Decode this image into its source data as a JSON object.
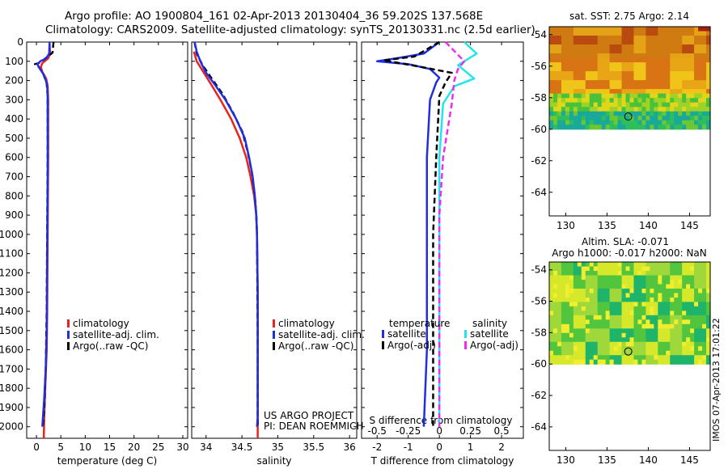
{
  "header": {
    "title_line1": "Argo profile: AO 1900804_161 02-Apr-2013 20130404_36 59.202S 137.568E",
    "title_line2": "Climatology: CARS2009. Satellite-adjusted climatology: synTS_20130331.nc (2.5d earlier)"
  },
  "side_stamp": "IMOS 07-Apr-2013 17:01:22",
  "colors": {
    "red": "#e8231d",
    "blue": "#1f2fe0",
    "black": "#000000",
    "cyan": "#22e5ea",
    "magenta": "#f02cf2"
  },
  "chart_data": [
    {
      "id": "temperature",
      "type": "line",
      "xlabel": "temperature (deg C)",
      "ylabel": "",
      "xlim": [
        -2,
        31
      ],
      "ylim": [
        2060,
        0
      ],
      "xticks": [
        0,
        5,
        10,
        15,
        20,
        25,
        30
      ],
      "yticks": [
        0,
        100,
        200,
        300,
        400,
        500,
        600,
        700,
        800,
        900,
        1000,
        1100,
        1200,
        1300,
        1400,
        1500,
        1600,
        1700,
        1800,
        1900,
        2000
      ],
      "legend": [
        "climatology",
        "satellite-adj. clim.",
        "Argo(..raw -QC)"
      ],
      "series": [
        {
          "name": "climatology",
          "color": "red",
          "points": [
            [
              2.7,
              10
            ],
            [
              2.8,
              60
            ],
            [
              2.4,
              85
            ],
            [
              1.2,
              110
            ],
            [
              0.9,
              130
            ],
            [
              1.2,
              155
            ],
            [
              2.0,
              190
            ],
            [
              2.3,
              230
            ],
            [
              2.4,
              300
            ],
            [
              2.4,
              600
            ],
            [
              2.3,
              1000
            ],
            [
              2.2,
              1400
            ],
            [
              2.1,
              1600
            ],
            [
              1.8,
              1800
            ],
            [
              1.6,
              1950
            ],
            [
              1.5,
              2060
            ]
          ]
        },
        {
          "name": "satellite-adj. clim.",
          "color": "blue",
          "points": [
            [
              2.7,
              0
            ],
            [
              2.6,
              60
            ],
            [
              2.0,
              85
            ],
            [
              0.8,
              100
            ],
            [
              0.2,
              115
            ],
            [
              0.6,
              135
            ],
            [
              1.5,
              170
            ],
            [
              2.2,
              220
            ],
            [
              2.3,
              300
            ],
            [
              2.3,
              700
            ],
            [
              2.2,
              1100
            ],
            [
              2.1,
              1500
            ],
            [
              1.9,
              1700
            ],
            [
              1.6,
              1850
            ],
            [
              1.2,
              2000
            ]
          ]
        },
        {
          "name": "Argo(..raw -QC)",
          "color": "black",
          "points": [
            [
              3.5,
              0
            ],
            [
              3.3,
              55
            ],
            [
              1.6,
              90
            ],
            [
              0.4,
              110
            ],
            [
              -0.3,
              115
            ],
            [
              0.5,
              130
            ],
            [
              1.4,
              165
            ],
            [
              2.1,
              215
            ],
            [
              2.3,
              280
            ],
            [
              2.3,
              600
            ],
            [
              2.2,
              1000
            ],
            [
              2.1,
              1400
            ],
            [
              1.9,
              1700
            ],
            [
              1.6,
              1900
            ],
            [
              1.3,
              2000
            ]
          ]
        }
      ]
    },
    {
      "id": "salinity",
      "type": "line",
      "xlabel": "salinity",
      "ylabel": "",
      "xlim": [
        33.8,
        36.1
      ],
      "ylim": [
        2060,
        0
      ],
      "xticks": [
        34,
        34.5,
        35,
        35.5,
        36
      ],
      "yticks": [
        0,
        100,
        200,
        300,
        400,
        500,
        600,
        700,
        800,
        900,
        1000,
        1100,
        1200,
        1300,
        1400,
        1500,
        1600,
        1700,
        1800,
        1900,
        2000
      ],
      "legend": [
        "climatology",
        "satellite-adj. clim.",
        "Argo(..raw -QC)"
      ],
      "annotation": [
        "US ARGO PROJECT",
        "PI: DEAN ROEMMICH"
      ],
      "series": [
        {
          "name": "climatology",
          "color": "red",
          "points": [
            [
              33.83,
              50
            ],
            [
              33.87,
              100
            ],
            [
              33.97,
              160
            ],
            [
              34.07,
              220
            ],
            [
              34.2,
              300
            ],
            [
              34.35,
              400
            ],
            [
              34.47,
              500
            ],
            [
              34.56,
              600
            ],
            [
              34.62,
              700
            ],
            [
              34.67,
              800
            ],
            [
              34.7,
              900
            ],
            [
              34.71,
              1000
            ],
            [
              34.72,
              1300
            ],
            [
              34.72,
              1700
            ],
            [
              34.72,
              2060
            ]
          ]
        },
        {
          "name": "satellite-adj. clim.",
          "color": "blue",
          "points": [
            [
              33.84,
              0
            ],
            [
              33.87,
              50
            ],
            [
              33.92,
              100
            ],
            [
              34.0,
              160
            ],
            [
              34.12,
              220
            ],
            [
              34.27,
              300
            ],
            [
              34.42,
              400
            ],
            [
              34.54,
              500
            ],
            [
              34.6,
              600
            ],
            [
              34.65,
              700
            ],
            [
              34.68,
              800
            ],
            [
              34.7,
              900
            ],
            [
              34.71,
              1000
            ],
            [
              34.72,
              1300
            ],
            [
              34.72,
              1700
            ],
            [
              34.72,
              1950
            ],
            [
              34.71,
              2000
            ]
          ]
        },
        {
          "name": "Argo(..raw -QC)",
          "color": "black",
          "points": [
            [
              33.84,
              0
            ],
            [
              33.87,
              60
            ],
            [
              33.95,
              120
            ],
            [
              34.08,
              190
            ],
            [
              34.23,
              270
            ],
            [
              34.38,
              370
            ],
            [
              34.51,
              470
            ],
            [
              34.58,
              570
            ],
            [
              34.64,
              680
            ],
            [
              34.68,
              800
            ],
            [
              34.7,
              900
            ],
            [
              34.71,
              1000
            ],
            [
              34.72,
              1500
            ],
            [
              34.72,
              2000
            ]
          ]
        }
      ]
    },
    {
      "id": "difference",
      "type": "line",
      "xlabel": "T difference from climatology",
      "xlabel_top": "S difference from climatology",
      "xlim": [
        -2.5,
        2.7
      ],
      "ylim": [
        2060,
        0
      ],
      "xticks": [
        -2,
        -1,
        0,
        1,
        2
      ],
      "xticks_s": [
        -0.5,
        -0.25,
        0,
        0.25,
        0.5
      ],
      "yticks": [
        0,
        100,
        200,
        300,
        400,
        500,
        600,
        700,
        800,
        900,
        1000,
        1100,
        1200,
        1300,
        1400,
        1500,
        1600,
        1700,
        1800,
        1900,
        2000
      ],
      "legend_titles": [
        "temperature",
        "salinity"
      ],
      "legend": [
        "satellite",
        "Argo(-adj)",
        "satellite",
        "Argo(-adj)"
      ],
      "series": [
        {
          "name": "satellite",
          "group": "temperature",
          "color": "blue",
          "points": [
            [
              0,
              0
            ],
            [
              -0.5,
              60
            ],
            [
              -1.4,
              85
            ],
            [
              -2.0,
              100
            ],
            [
              -1.0,
              115
            ],
            [
              -0.3,
              140
            ],
            [
              0,
              185
            ],
            [
              -0.1,
              210
            ],
            [
              -0.3,
              300
            ],
            [
              -0.4,
              600
            ],
            [
              -0.4,
              1000
            ],
            [
              -0.4,
              1600
            ],
            [
              -0.5,
              2000
            ]
          ]
        },
        {
          "name": "Argo(-adj)",
          "group": "temperature",
          "color": "black",
          "points": [
            [
              0,
              0
            ],
            [
              -0.8,
              75
            ],
            [
              -1.8,
              95
            ],
            [
              -0.9,
              120
            ],
            [
              0.4,
              160
            ],
            [
              0.2,
              210
            ],
            [
              0.0,
              280
            ],
            [
              -0.1,
              600
            ],
            [
              -0.2,
              1000
            ],
            [
              -0.2,
              1600
            ],
            [
              -0.2,
              2000
            ]
          ]
        },
        {
          "name": "satellite",
          "group": "salinity",
          "color": "cyan",
          "points": [
            [
              0.2,
              0
            ],
            [
              0.3,
              60
            ],
            [
              0.15,
              120
            ],
            [
              0.28,
              190
            ],
            [
              0.12,
              230
            ],
            [
              0.03,
              320
            ],
            [
              0.0,
              600
            ],
            [
              0.0,
              2000
            ]
          ]
        },
        {
          "name": "Argo(-adj)",
          "group": "salinity",
          "color": "magenta",
          "points": [
            [
              0.05,
              0
            ],
            [
              0.2,
              100
            ],
            [
              0.15,
              140
            ],
            [
              0.12,
              200
            ],
            [
              0.1,
              320
            ],
            [
              0.03,
              600
            ],
            [
              0.0,
              900
            ],
            [
              0.0,
              2000
            ]
          ]
        }
      ]
    },
    {
      "id": "sst_map",
      "type": "heatmap",
      "title": "sat. SST: 2.75 Argo: 2.14",
      "xlim": [
        128,
        147.5
      ],
      "ylim": [
        -65.5,
        -53.5
      ],
      "xticks": [
        130,
        135,
        140,
        145
      ],
      "yticks": [
        -54,
        -56,
        -58,
        -60,
        -62,
        -64
      ],
      "data_ylim": [
        -60,
        -53.5
      ],
      "marker": [
        137.57,
        -59.2
      ]
    },
    {
      "id": "sla_map",
      "type": "heatmap",
      "title_line1": "Altim. SLA: -0.071",
      "title_line2": "Argo h1000: -0.017 h2000: NaN",
      "xlim": [
        128,
        147.5
      ],
      "ylim": [
        -65.5,
        -53.5
      ],
      "xticks": [
        130,
        135,
        140,
        145
      ],
      "yticks": [
        -54,
        -56,
        -58,
        -60,
        -62,
        -64
      ],
      "data_ylim": [
        -60,
        -53.5
      ],
      "marker": [
        137.57,
        -59.2
      ]
    }
  ]
}
